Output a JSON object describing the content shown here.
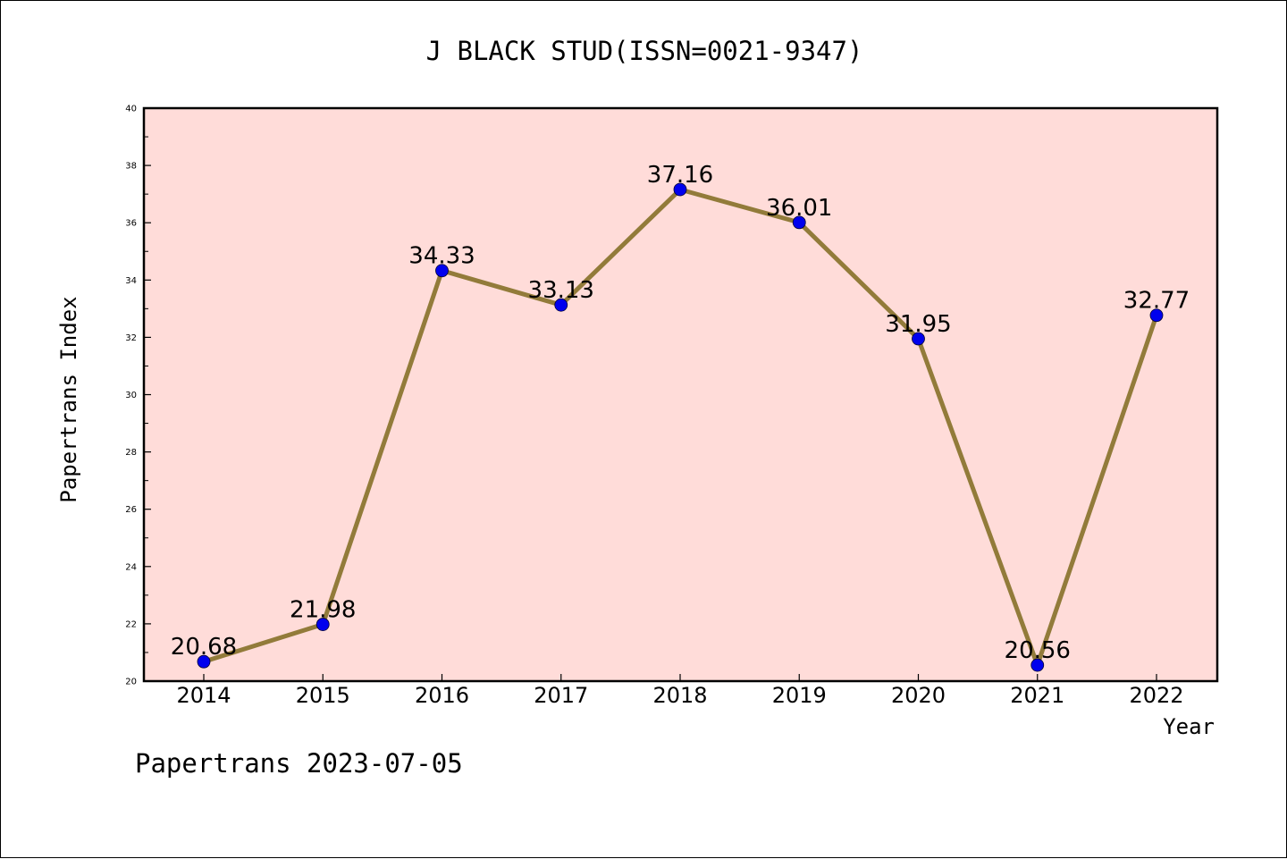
{
  "chart_data": {
    "type": "line",
    "title": "J BLACK STUD(ISSN=0021-9347)",
    "xlabel": "Year",
    "ylabel": "Papertrans Index",
    "footer": "Papertrans 2023-07-05",
    "categories": [
      "2014",
      "2015",
      "2016",
      "2017",
      "2018",
      "2019",
      "2020",
      "2021",
      "2022"
    ],
    "series": [
      {
        "values": [
          20.68,
          21.98,
          34.33,
          33.13,
          37.16,
          36.01,
          31.95,
          20.56,
          32.77
        ],
        "labels": [
          "20.68",
          "21.98",
          "34.33",
          "33.13",
          "37.16",
          "36.01",
          "31.95",
          "20.56",
          "32.77"
        ]
      }
    ],
    "ylim": [
      20,
      40
    ],
    "yticks": [
      "20",
      "22",
      "24",
      "26",
      "28",
      "30",
      "32",
      "34",
      "36",
      "38",
      "40"
    ],
    "grid": false,
    "legend": "none",
    "colors": {
      "plot_background": "#ffdcd9",
      "line": "#927b3a",
      "marker": "#0000ee",
      "axes": "#000000"
    }
  }
}
